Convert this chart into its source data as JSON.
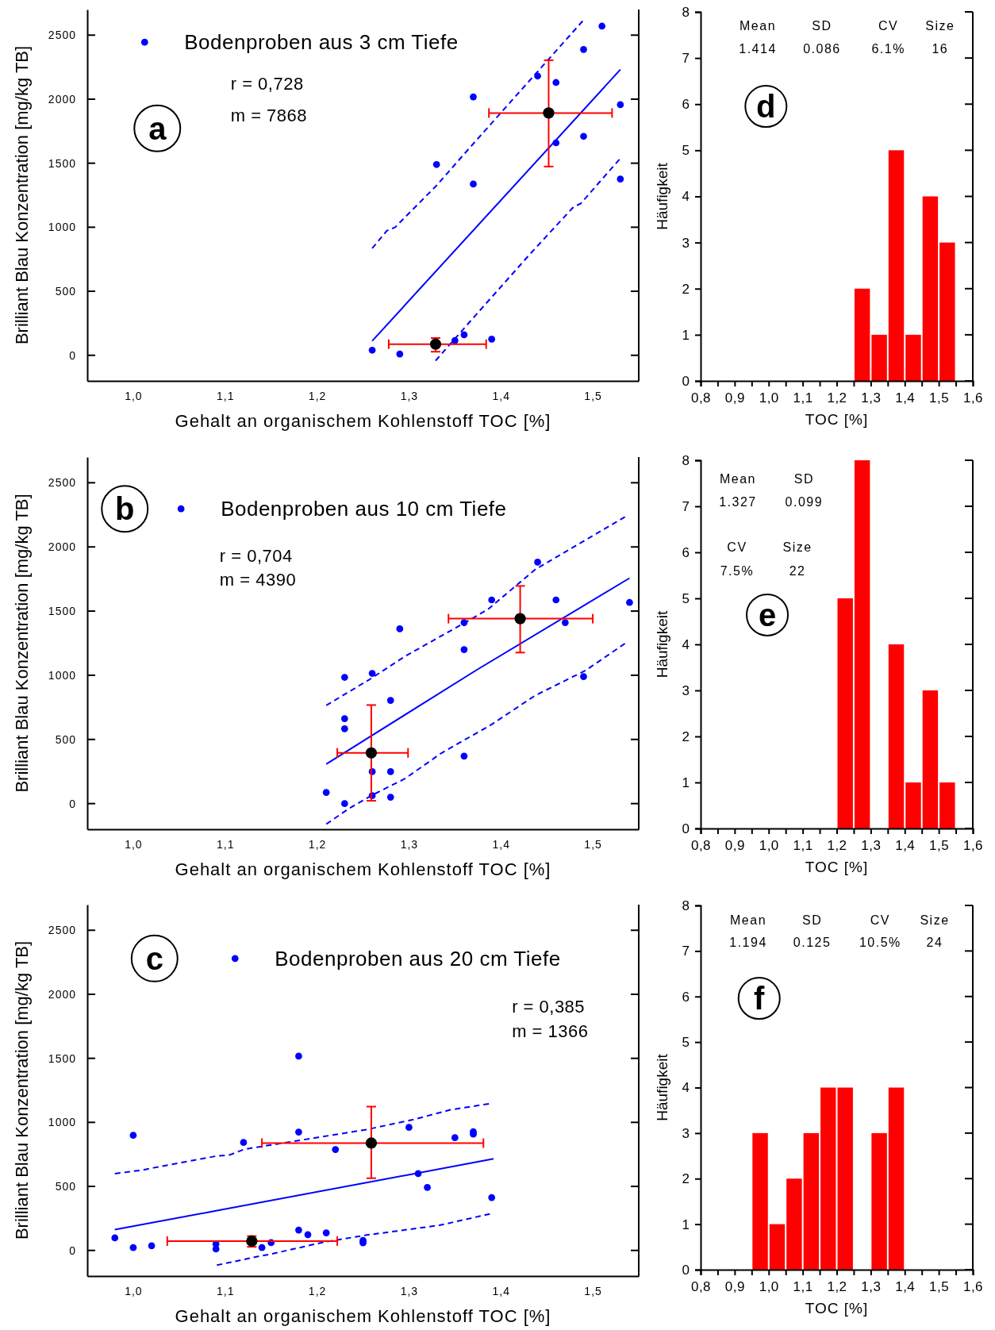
{
  "chart_data": [
    {
      "type": "scatter",
      "xlabel": "Gehalt an organischem Kohlenstoff TOC [%]",
      "ylabel": "Brilliant Blau Konzentration [mg/kg TB]",
      "xlim": [
        0.95,
        1.55
      ],
      "ylim": [
        -200,
        2700
      ],
      "xticks": [
        {
          "value": 1.0,
          "label": "1,0"
        },
        {
          "value": 1.1,
          "label": "1,1"
        },
        {
          "value": 1.2,
          "label": "1,2"
        },
        {
          "value": 1.3,
          "label": "1,3"
        },
        {
          "value": 1.4,
          "label": "1,4"
        },
        {
          "value": 1.5,
          "label": "1,5"
        }
      ],
      "yticks": [
        0,
        500,
        1000,
        1500,
        2000,
        2500
      ],
      "legend": "top left",
      "annotations": [
        "a",
        "r = 0,728",
        "m = 7868"
      ],
      "series": [
        {
          "name": "Bodenproben aus 3 cm Tiefe",
          "marker": "circle",
          "color": "#0000ff",
          "x": [
            1.26,
            1.29,
            1.35,
            1.36,
            1.39,
            1.33,
            1.37,
            1.37,
            1.44,
            1.46,
            1.46,
            1.49,
            1.49,
            1.51,
            1.53,
            1.53
          ],
          "values": [
            40,
            10,
            115,
            160,
            126,
            1490,
            2018,
            1337,
            2181,
            2130,
            1659,
            2388,
            1710,
            2570,
            1957,
            1376
          ]
        },
        {
          "type": "line",
          "line_style": "solid",
          "color": "#0000ff",
          "x": [
            1.26,
            1.53
          ],
          "values": [
            112,
            2231
          ]
        },
        {
          "type": "line",
          "line_style": "dashed",
          "color": "#0000ff",
          "x": [
            1.26,
            1.276,
            1.285,
            1.33,
            1.366,
            1.489
          ],
          "values": [
            835,
            973,
            1000,
            1326,
            1620,
            2610
          ]
        },
        {
          "type": "line",
          "line_style": "dashed",
          "color": "#0000ff",
          "x": [
            1.329,
            1.373,
            1.432,
            1.479,
            1.487,
            1.529
          ],
          "values": [
            -42,
            317,
            793,
            1158,
            1186,
            1530
          ]
        },
        {
          "marker": "circle",
          "color": "#000000",
          "x": [
            1.452,
            1.329
          ],
          "values": [
            1892,
            87
          ],
          "errors": [
            [
              1474,
              2304
            ],
            [
              28,
              135
            ]
          ],
          "xerrors": [
            [
              1.387,
              1.521
            ],
            [
              1.278,
              1.384
            ]
          ]
        }
      ]
    },
    {
      "type": "histogram",
      "xlabel": "TOC [%]",
      "ylabel": "Häufigkeit",
      "color": "#ff0000",
      "xlim": [
        0.8,
        1.6
      ],
      "ylim": [
        0,
        8
      ],
      "xticks": [
        {
          "value": 0.8,
          "label": "0,8"
        },
        {
          "value": 0.85,
          "label": null
        },
        {
          "value": 0.9,
          "label": "0,9"
        },
        {
          "value": 0.95,
          "label": null
        },
        {
          "value": 1.0,
          "label": "1,0"
        },
        {
          "value": 1.05,
          "label": null
        },
        {
          "value": 1.1,
          "label": "1,1"
        },
        {
          "value": 1.15,
          "label": null
        },
        {
          "value": 1.2,
          "label": "1,2"
        },
        {
          "value": 1.25,
          "label": null
        },
        {
          "value": 1.3,
          "label": "1,3"
        },
        {
          "value": 1.35,
          "label": null
        },
        {
          "value": 1.4,
          "label": "1,4"
        },
        {
          "value": 1.45,
          "label": null
        },
        {
          "value": 1.5,
          "label": "1,5"
        },
        {
          "value": 1.55,
          "label": null
        },
        {
          "value": 1.6,
          "label": "1,6"
        }
      ],
      "yticks": [
        0,
        1,
        2,
        3,
        4,
        5,
        6,
        7,
        8
      ],
      "annotations": [
        "d",
        "Mean",
        "1.414",
        "SD",
        "0.086",
        "CV",
        "6.1%",
        "Size",
        "16"
      ],
      "bins": [
        0.8,
        0.85,
        0.9,
        0.95,
        1.0,
        1.05,
        1.1,
        1.15,
        1.2,
        1.25,
        1.3,
        1.35,
        1.4,
        1.45,
        1.5,
        1.55,
        1.6
      ],
      "values": [
        0,
        0,
        0,
        0,
        0,
        0,
        0,
        0,
        0,
        2,
        1,
        5,
        1,
        4,
        3,
        0
      ]
    },
    {
      "type": "scatter",
      "xlabel": "Gehalt an organischem Kohlenstoff TOC [%]",
      "ylabel": "Brilliant Blau Konzentration [mg/kg TB]",
      "xlim": [
        0.95,
        1.55
      ],
      "ylim": [
        -200,
        2700
      ],
      "xticks": [
        {
          "value": 1.0,
          "label": "1,0"
        },
        {
          "value": 1.1,
          "label": "1,1"
        },
        {
          "value": 1.2,
          "label": "1,2"
        },
        {
          "value": 1.3,
          "label": "1,3"
        },
        {
          "value": 1.4,
          "label": "1,4"
        },
        {
          "value": 1.5,
          "label": "1,5"
        }
      ],
      "yticks": [
        0,
        500,
        1000,
        1500,
        2000,
        2500
      ],
      "legend": "top left",
      "annotations": [
        "b",
        "r = 0,704",
        "m = 4390"
      ],
      "series": [
        {
          "name": "Bodenproben aus 10 cm Tiefe",
          "marker": "circle",
          "color": "#0000ff",
          "x": [
            1.21,
            1.23,
            1.23,
            1.23,
            1.23,
            1.26,
            1.26,
            1.26,
            1.28,
            1.28,
            1.28,
            1.29,
            1.36,
            1.36,
            1.36,
            1.39,
            1.44,
            1.46,
            1.47,
            1.49,
            1.54
          ],
          "values": [
            87,
            0,
            583,
            662,
            984,
            62,
            249,
            1015,
            249,
            50,
            804,
            1362,
            1410,
            1200,
            370,
            1587,
            1881,
            1587,
            1410,
            989,
            1567
          ]
        },
        {
          "type": "line",
          "line_style": "solid",
          "color": "#0000ff",
          "x": [
            1.21,
            1.374,
            1.54
          ],
          "values": [
            308,
            1043,
            1757
          ]
        },
        {
          "type": "line",
          "line_style": "dashed",
          "color": "#0000ff",
          "x": [
            1.21,
            1.257,
            1.296,
            1.359,
            1.386,
            1.437,
            1.535
          ],
          "values": [
            765,
            967,
            1149,
            1402,
            1514,
            1822,
            2234
          ]
        },
        {
          "type": "line",
          "line_style": "dashed",
          "color": "#0000ff",
          "x": [
            1.21,
            1.234,
            1.261,
            1.296,
            1.335,
            1.39,
            1.437,
            1.492,
            1.535
          ],
          "values": [
            -160,
            -42,
            70,
            196,
            392,
            617,
            841,
            1037,
            1247
          ]
        },
        {
          "marker": "circle",
          "color": "#000000",
          "x": [
            1.421,
            1.259
          ],
          "values": [
            1441,
            395
          ],
          "errors": [
            [
              1177,
              1696
            ],
            [
              22,
              768
            ]
          ],
          "xerrors": [
            [
              1.343,
              1.5
            ],
            [
              1.222,
              1.299
            ]
          ]
        }
      ]
    },
    {
      "type": "histogram",
      "xlabel": "TOC [%]",
      "ylabel": "Häufigkeit",
      "color": "#ff0000",
      "xlim": [
        0.8,
        1.6
      ],
      "ylim": [
        0,
        8
      ],
      "xticks": [
        {
          "value": 0.8,
          "label": "0,8"
        },
        {
          "value": 0.85,
          "label": null
        },
        {
          "value": 0.9,
          "label": "0,9"
        },
        {
          "value": 0.95,
          "label": null
        },
        {
          "value": 1.0,
          "label": "1,0"
        },
        {
          "value": 1.05,
          "label": null
        },
        {
          "value": 1.1,
          "label": "1,1"
        },
        {
          "value": 1.15,
          "label": null
        },
        {
          "value": 1.2,
          "label": "1,2"
        },
        {
          "value": 1.25,
          "label": null
        },
        {
          "value": 1.3,
          "label": "1,3"
        },
        {
          "value": 1.35,
          "label": null
        },
        {
          "value": 1.4,
          "label": "1,4"
        },
        {
          "value": 1.45,
          "label": null
        },
        {
          "value": 1.5,
          "label": "1,5"
        },
        {
          "value": 1.55,
          "label": null
        },
        {
          "value": 1.6,
          "label": "1,6"
        }
      ],
      "yticks": [
        0,
        1,
        2,
        3,
        4,
        5,
        6,
        7,
        8
      ],
      "annotations": [
        "e",
        "Mean",
        "1.327",
        "SD",
        "0.099",
        "CV",
        "7.5%",
        "Size",
        "22"
      ],
      "bins": [
        0.8,
        0.85,
        0.9,
        0.95,
        1.0,
        1.05,
        1.1,
        1.15,
        1.2,
        1.25,
        1.3,
        1.35,
        1.4,
        1.45,
        1.5,
        1.55,
        1.6
      ],
      "values": [
        0,
        0,
        0,
        0,
        0,
        0,
        0,
        0,
        5,
        8,
        0,
        4,
        1,
        3,
        1,
        0
      ]
    },
    {
      "type": "scatter",
      "xlabel": "Gehalt an organischem Kohlenstoff TOC [%]",
      "ylabel": "Brilliant Blau Konzentration [mg/kg TB]",
      "xlim": [
        0.95,
        1.55
      ],
      "ylim": [
        -200,
        2700
      ],
      "xticks": [
        {
          "value": 1.0,
          "label": "1,0"
        },
        {
          "value": 1.1,
          "label": "1,1"
        },
        {
          "value": 1.2,
          "label": "1,2"
        },
        {
          "value": 1.3,
          "label": "1,3"
        },
        {
          "value": 1.4,
          "label": "1,4"
        },
        {
          "value": 1.5,
          "label": "1,5"
        }
      ],
      "yticks": [
        0,
        500,
        1000,
        1500,
        2000,
        2500
      ],
      "legend": "top",
      "annotations": [
        "c",
        "r = 0,385",
        "m = 1366"
      ],
      "series": [
        {
          "name": "Bodenproben aus 20 cm Tiefe",
          "marker": "circle",
          "color": "#0000ff",
          "x": [
            0.98,
            1.0,
            1.0,
            1.02,
            1.09,
            1.09,
            1.12,
            1.14,
            1.15,
            1.18,
            1.18,
            1.18,
            1.19,
            1.21,
            1.22,
            1.25,
            1.25,
            1.3,
            1.31,
            1.32,
            1.35,
            1.37,
            1.37,
            1.39
          ],
          "values": [
            98,
            22,
            899,
            36,
            50,
            11,
            843,
            22,
            61,
            1517,
            924,
            159,
            123,
            137,
            788,
            78,
            59,
            961,
            600,
            492,
            880,
            927,
            908,
            413
          ]
        },
        {
          "type": "line",
          "line_style": "solid",
          "color": "#0000ff",
          "x": [
            0.98,
            1.392
          ],
          "values": [
            162,
            715
          ]
        },
        {
          "type": "line",
          "line_style": "dashed",
          "color": "#0000ff",
          "x": [
            0.98,
            1.011,
            1.022,
            1.089,
            1.105,
            1.121,
            1.254,
            1.305,
            1.345,
            1.387
          ],
          "values": [
            600,
            628,
            645,
            735,
            746,
            790,
            944,
            1022,
            1098,
            1145
          ]
        },
        {
          "type": "line",
          "line_style": "dashed",
          "color": "#0000ff",
          "x": [
            1.091,
            1.136,
            1.152,
            1.207,
            1.254,
            1.333,
            1.388
          ],
          "values": [
            -115,
            -47,
            -25,
            64,
            120,
            196,
            285
          ]
        },
        {
          "marker": "circle",
          "color": "#000000",
          "x": [
            1.259,
            1.129
          ],
          "values": [
            838,
            73
          ],
          "errors": [
            [
              564,
              1123
            ],
            [
              28,
              112
            ]
          ],
          "xerrors": [
            [
              1.14,
              1.381
            ],
            [
              1.037,
              1.222
            ]
          ]
        }
      ]
    },
    {
      "type": "histogram",
      "xlabel": "TOC [%]",
      "ylabel": "Häufigkeit",
      "color": "#ff0000",
      "xlim": [
        0.8,
        1.6
      ],
      "ylim": [
        0,
        8
      ],
      "xticks": [
        {
          "value": 0.8,
          "label": "0,8"
        },
        {
          "value": 0.85,
          "label": null
        },
        {
          "value": 0.9,
          "label": "0,9"
        },
        {
          "value": 0.95,
          "label": null
        },
        {
          "value": 1.0,
          "label": "1,0"
        },
        {
          "value": 1.05,
          "label": null
        },
        {
          "value": 1.1,
          "label": "1,1"
        },
        {
          "value": 1.15,
          "label": null
        },
        {
          "value": 1.2,
          "label": "1,2"
        },
        {
          "value": 1.25,
          "label": null
        },
        {
          "value": 1.3,
          "label": "1,3"
        },
        {
          "value": 1.35,
          "label": null
        },
        {
          "value": 1.4,
          "label": "1,4"
        },
        {
          "value": 1.45,
          "label": null
        },
        {
          "value": 1.5,
          "label": "1,5"
        },
        {
          "value": 1.55,
          "label": null
        },
        {
          "value": 1.6,
          "label": "1,6"
        }
      ],
      "yticks": [
        0,
        1,
        2,
        3,
        4,
        5,
        6,
        7,
        8
      ],
      "annotations": [
        "f",
        "Mean",
        "1.194",
        "SD",
        "0.125",
        "CV",
        "10.5%",
        "Size",
        "24"
      ],
      "bins": [
        0.8,
        0.85,
        0.9,
        0.95,
        1.0,
        1.05,
        1.1,
        1.15,
        1.2,
        1.25,
        1.3,
        1.35,
        1.4,
        1.45,
        1.5,
        1.55,
        1.6
      ],
      "values": [
        0,
        0,
        0,
        3,
        1,
        2,
        3,
        4,
        4,
        0,
        3,
        4,
        0,
        0,
        0,
        0
      ]
    }
  ]
}
